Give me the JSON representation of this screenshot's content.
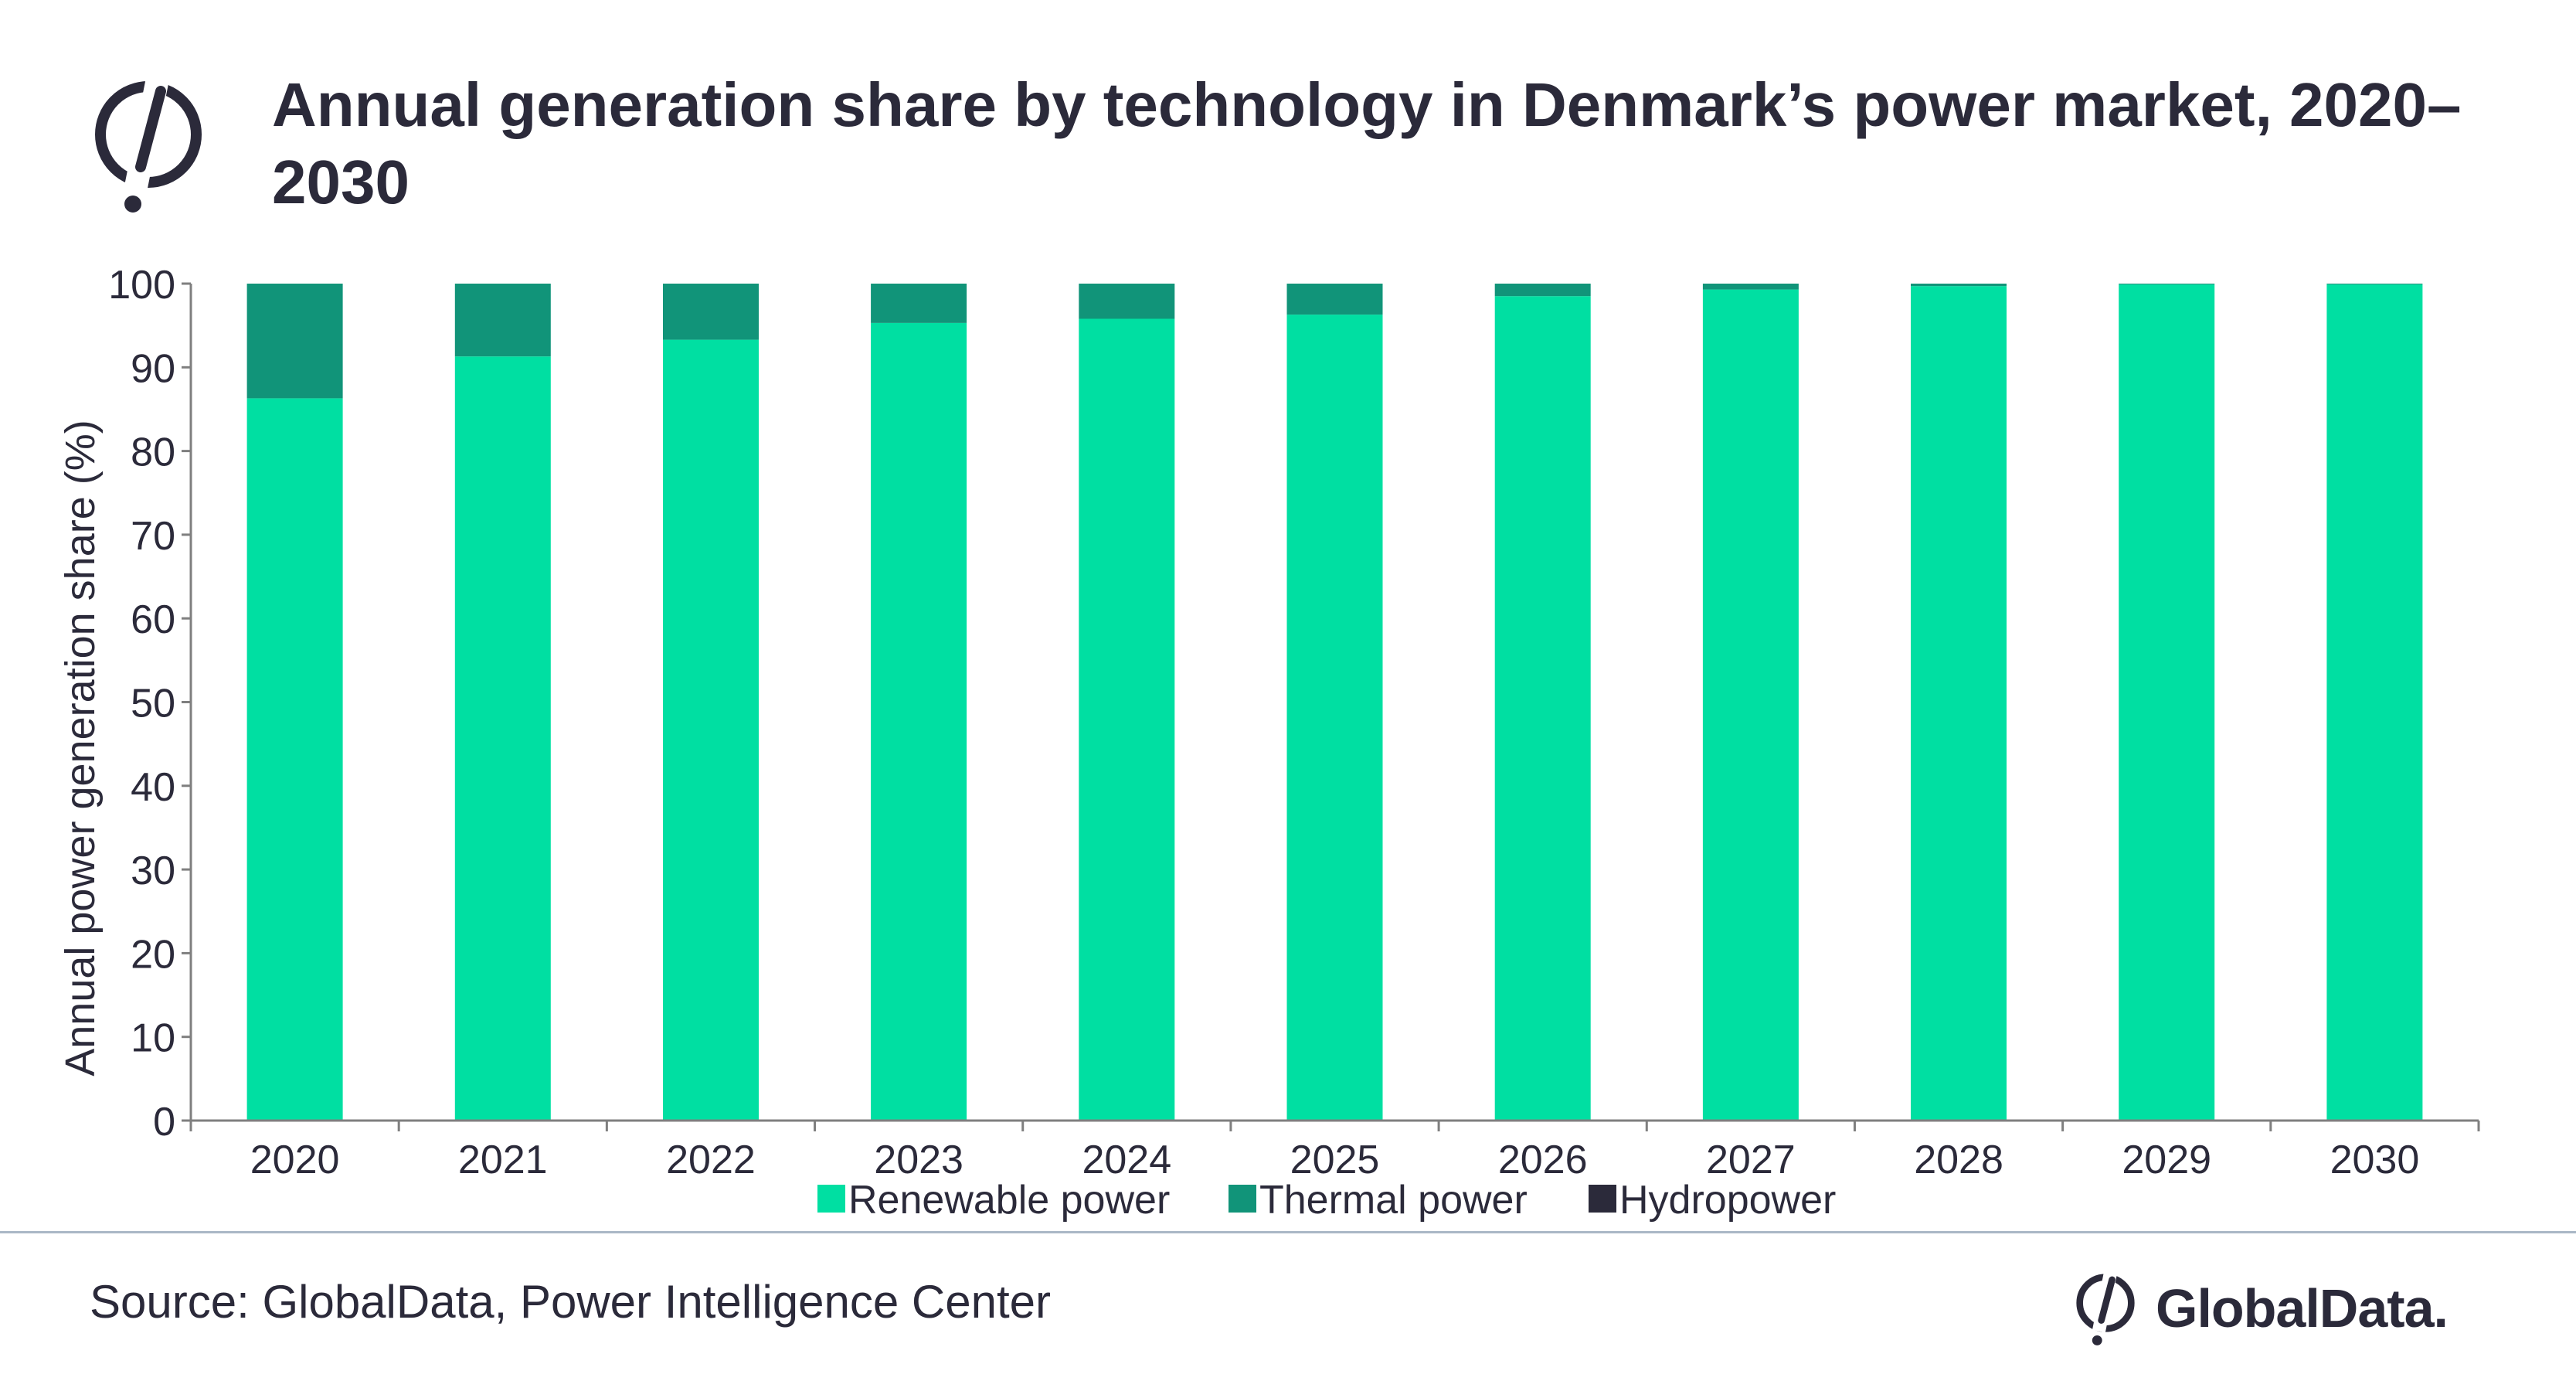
{
  "title": "Annual generation share by technology in Denmark’s power market, 2020–2030",
  "source": "Source: GlobalData, Power Intelligence Center",
  "brand": {
    "name": "GlobalData.",
    "logo_icon": "globaldata-logo-icon"
  },
  "colors": {
    "renewable": "#00dfa2",
    "thermal": "#119479",
    "hydro": "#2b2a3a",
    "text": "#2b2a3a",
    "axis": "#7f7f7f",
    "divider": "#aab8c6"
  },
  "chart_data": {
    "type": "bar",
    "stacked": true,
    "title": "Annual generation share by technology in Denmark’s power market, 2020–2030",
    "xlabel": "",
    "ylabel": "Annual power generation share (%)",
    "ylim": [
      0,
      100
    ],
    "yticks": [
      0,
      10,
      20,
      30,
      40,
      50,
      60,
      70,
      80,
      90,
      100
    ],
    "categories": [
      "2020",
      "2021",
      "2022",
      "2023",
      "2024",
      "2025",
      "2026",
      "2027",
      "2028",
      "2029",
      "2030"
    ],
    "series": [
      {
        "name": "Renewable power",
        "values": [
          86.3,
          91.3,
          93.3,
          95.3,
          95.8,
          96.3,
          98.5,
          99.3,
          99.7,
          99.9,
          99.9
        ]
      },
      {
        "name": "Thermal power",
        "values": [
          13.7,
          8.7,
          6.7,
          4.7,
          4.2,
          3.7,
          1.5,
          0.7,
          0.3,
          0.1,
          0.1
        ]
      },
      {
        "name": "Hydropower",
        "values": [
          0,
          0,
          0,
          0,
          0,
          0,
          0,
          0,
          0,
          0,
          0
        ]
      }
    ],
    "grid": false,
    "legend": "bottom"
  }
}
